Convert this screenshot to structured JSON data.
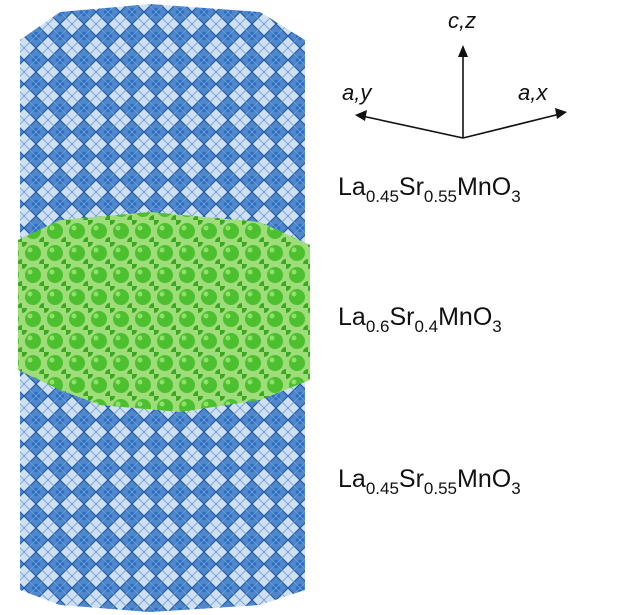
{
  "axes": {
    "c": "c,z",
    "ay": "a,y",
    "ax": "a,x"
  },
  "layers": [
    {
      "parts": [
        "La",
        "0.45",
        "Sr",
        "0.55",
        "MnO",
        "3"
      ]
    },
    {
      "parts": [
        "La",
        "0.6",
        "Sr",
        "0.4",
        "MnO",
        "3"
      ]
    },
    {
      "parts": [
        "La",
        "0.45",
        "Sr",
        "0.55",
        "MnO",
        "3"
      ]
    }
  ]
}
